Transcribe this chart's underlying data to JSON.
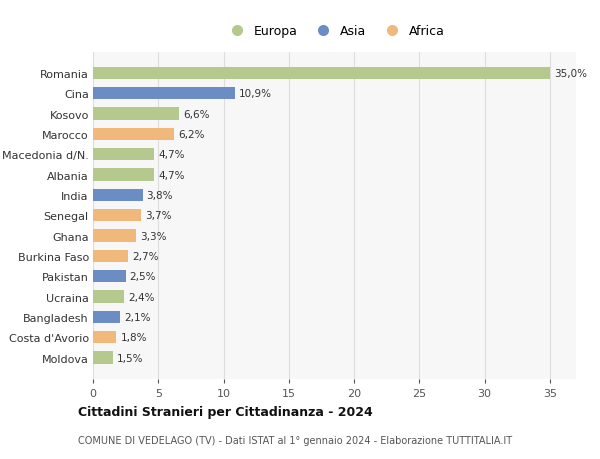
{
  "countries": [
    "Romania",
    "Cina",
    "Kosovo",
    "Marocco",
    "Macedonia d/N.",
    "Albania",
    "India",
    "Senegal",
    "Ghana",
    "Burkina Faso",
    "Pakistan",
    "Ucraina",
    "Bangladesh",
    "Costa d'Avorio",
    "Moldova"
  ],
  "values": [
    35.0,
    10.9,
    6.6,
    6.2,
    4.7,
    4.7,
    3.8,
    3.7,
    3.3,
    2.7,
    2.5,
    2.4,
    2.1,
    1.8,
    1.5
  ],
  "labels": [
    "35,0%",
    "10,9%",
    "6,6%",
    "6,2%",
    "4,7%",
    "4,7%",
    "3,8%",
    "3,7%",
    "3,3%",
    "2,7%",
    "2,5%",
    "2,4%",
    "2,1%",
    "1,8%",
    "1,5%"
  ],
  "continents": [
    "Europa",
    "Asia",
    "Europa",
    "Africa",
    "Europa",
    "Europa",
    "Asia",
    "Africa",
    "Africa",
    "Africa",
    "Asia",
    "Europa",
    "Asia",
    "Africa",
    "Europa"
  ],
  "colors": {
    "Europa": "#b5c98e",
    "Asia": "#6b8dc4",
    "Africa": "#f0b87a"
  },
  "title": "Cittadini Stranieri per Cittadinanza - 2024",
  "subtitle": "COMUNE DI VEDELAGO (TV) - Dati ISTAT al 1° gennaio 2024 - Elaborazione TUTTITALIA.IT",
  "xlim": [
    0,
    37
  ],
  "xticks": [
    0,
    5,
    10,
    15,
    20,
    25,
    30,
    35
  ],
  "background_color": "#ffffff",
  "plot_background": "#f7f7f7",
  "grid_color": "#dddddd"
}
